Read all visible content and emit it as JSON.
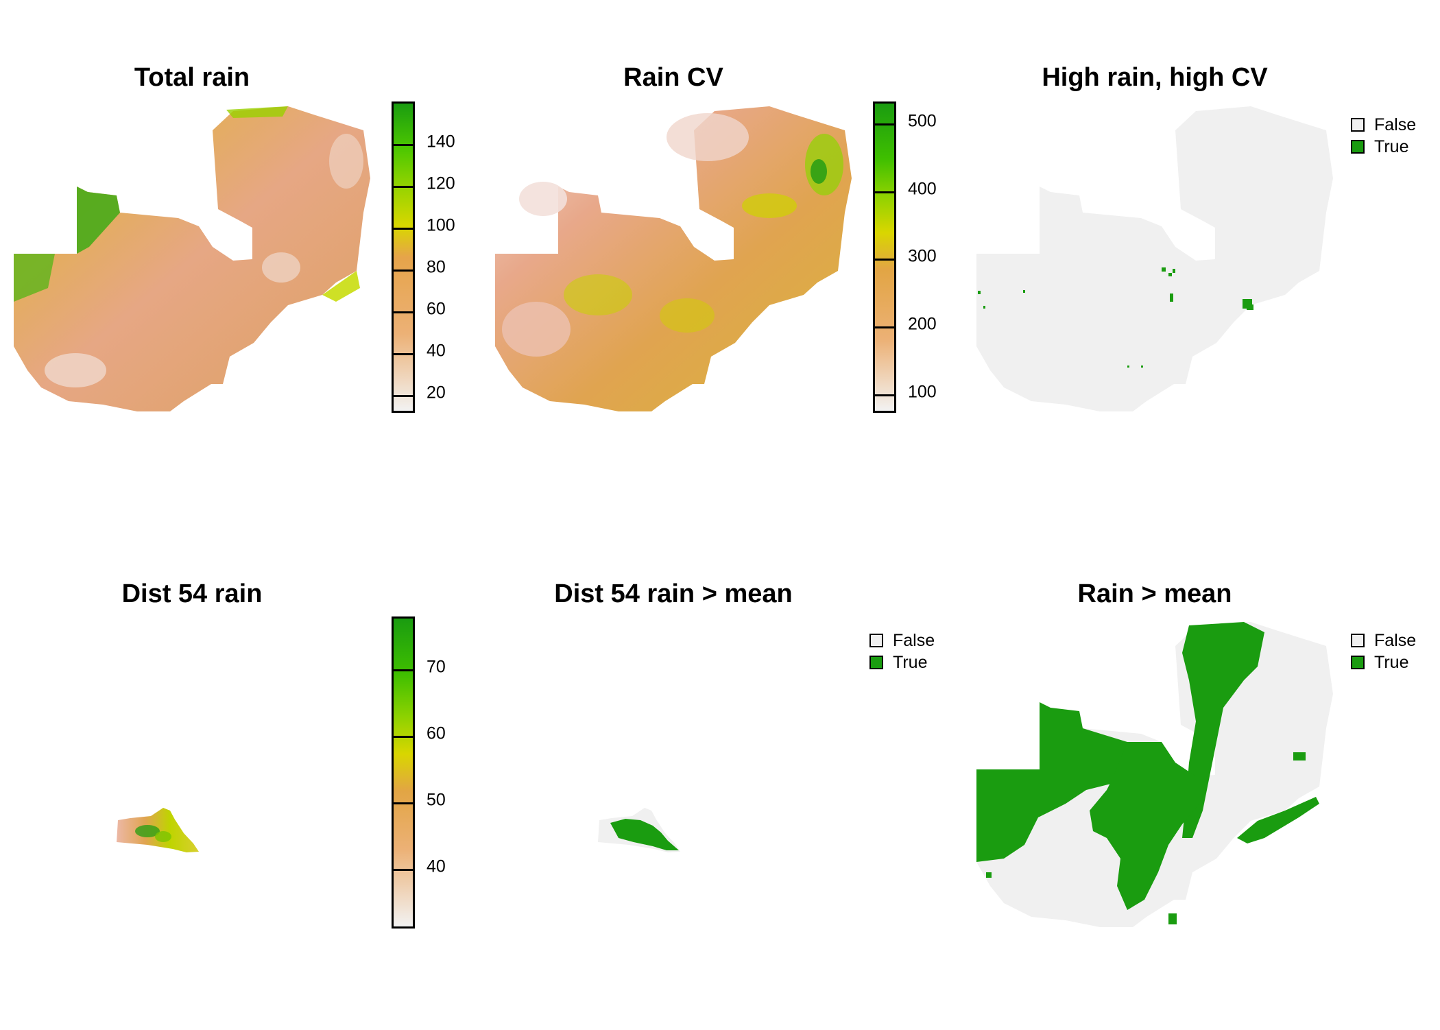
{
  "colors": {
    "scale": [
      "#f2f2f2",
      "#ecb176",
      "#e6c53a",
      "#ddd000",
      "#b6e000",
      "#4ec800",
      "#1a9c10"
    ],
    "map_low": "#e8a680",
    "map_mid": "#e0a64c",
    "map_yellow": "#d4d800",
    "map_green": "#2e9f15",
    "false_fill": "#f0f0f0",
    "true_fill": "#1a9c10"
  },
  "panels": [
    {
      "id": "total_rain",
      "title": "Total rain",
      "kind": "continuous",
      "legend": {
        "ticks": [
          "20",
          "40",
          "60",
          "80",
          "100",
          "120",
          "140"
        ]
      }
    },
    {
      "id": "rain_cv",
      "title": "Rain CV",
      "kind": "continuous",
      "legend": {
        "ticks": [
          "100",
          "200",
          "300",
          "400",
          "500"
        ]
      }
    },
    {
      "id": "high_rain_high_cv",
      "title": "High rain, high CV",
      "kind": "categorical",
      "legend": {
        "items": [
          {
            "label": "False"
          },
          {
            "label": "True"
          }
        ]
      }
    },
    {
      "id": "dist54_rain",
      "title": "Dist 54 rain",
      "kind": "continuous",
      "legend": {
        "ticks": [
          "40",
          "50",
          "60",
          "70"
        ]
      }
    },
    {
      "id": "dist54_rain_gt_mean",
      "title": "Dist 54 rain > mean",
      "kind": "categorical",
      "legend": {
        "items": [
          {
            "label": "False"
          },
          {
            "label": "True"
          }
        ]
      }
    },
    {
      "id": "rain_gt_mean",
      "title": "Rain > mean",
      "kind": "categorical",
      "legend": {
        "items": [
          {
            "label": "False"
          },
          {
            "label": "True"
          }
        ]
      }
    }
  ]
}
